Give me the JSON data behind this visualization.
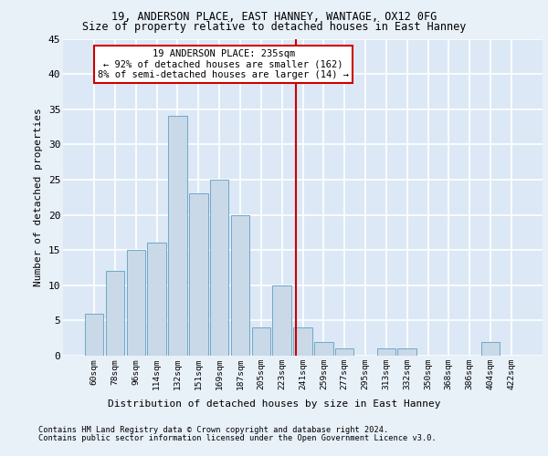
{
  "title1": "19, ANDERSON PLACE, EAST HANNEY, WANTAGE, OX12 0FG",
  "title2": "Size of property relative to detached houses in East Hanney",
  "xlabel": "Distribution of detached houses by size in East Hanney",
  "ylabel": "Number of detached properties",
  "bin_labels": [
    "60sqm",
    "78sqm",
    "96sqm",
    "114sqm",
    "132sqm",
    "151sqm",
    "169sqm",
    "187sqm",
    "205sqm",
    "223sqm",
    "241sqm",
    "259sqm",
    "277sqm",
    "295sqm",
    "313sqm",
    "332sqm",
    "350sqm",
    "368sqm",
    "386sqm",
    "404sqm",
    "422sqm"
  ],
  "bar_values": [
    6,
    12,
    15,
    16,
    34,
    23,
    25,
    20,
    4,
    10,
    4,
    2,
    1,
    0,
    1,
    1,
    0,
    0,
    0,
    2,
    0
  ],
  "bar_color": "#c9d9e8",
  "bar_edge_color": "#6fa8c8",
  "vline_color": "#cc0000",
  "annotation_text": "19 ANDERSON PLACE: 235sqm\n← 92% of detached houses are smaller (162)\n8% of semi-detached houses are larger (14) →",
  "annotation_box_color": "#ffffff",
  "annotation_box_edge_color": "#cc0000",
  "bg_color": "#dce8f5",
  "grid_color": "#ffffff",
  "fig_bg_color": "#e8f0f8",
  "ylim": [
    0,
    45
  ],
  "yticks": [
    0,
    5,
    10,
    15,
    20,
    25,
    30,
    35,
    40,
    45
  ],
  "footer1": "Contains HM Land Registry data © Crown copyright and database right 2024.",
  "footer2": "Contains public sector information licensed under the Open Government Licence v3.0."
}
